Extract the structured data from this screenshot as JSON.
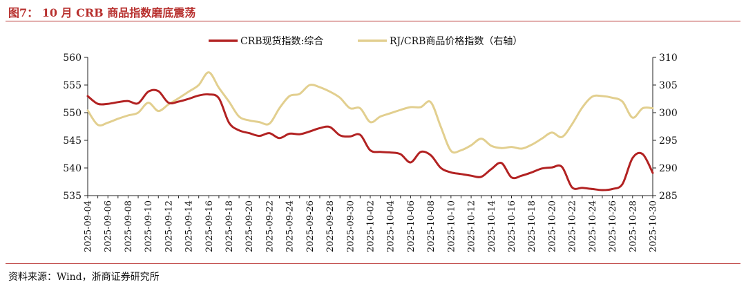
{
  "figure": {
    "title": "图7： 10 月 CRB 商品指数磨底震荡",
    "source": "资料来源：Wind，浙商证券研究所"
  },
  "colors": {
    "accent": "#b8312f",
    "series_crb": "#b22222",
    "series_rj": "#e2cf8f"
  },
  "chart_data": {
    "type": "line",
    "x": [
      "2025-09-04",
      "2025-09-05",
      "2025-09-06",
      "2025-09-07",
      "2025-09-08",
      "2025-09-09",
      "2025-09-10",
      "2025-09-11",
      "2025-09-12",
      "2025-09-13",
      "2025-09-14",
      "2025-09-15",
      "2025-09-16",
      "2025-09-17",
      "2025-09-18",
      "2025-09-19",
      "2025-09-20",
      "2025-09-21",
      "2025-09-22",
      "2025-09-23",
      "2025-09-24",
      "2025-09-25",
      "2025-09-26",
      "2025-09-27",
      "2025-09-28",
      "2025-09-29",
      "2025-09-30",
      "2025-10-01",
      "2025-10-02",
      "2025-10-03",
      "2025-10-04",
      "2025-10-05",
      "2025-10-06",
      "2025-10-07",
      "2025-10-08",
      "2025-10-09",
      "2025-10-10",
      "2025-10-11",
      "2025-10-12",
      "2025-10-13",
      "2025-10-14",
      "2025-10-15",
      "2025-10-16",
      "2025-10-17",
      "2025-10-18",
      "2025-10-19",
      "2025-10-20",
      "2025-10-21",
      "2025-10-22",
      "2025-10-23",
      "2025-10-24",
      "2025-10-25",
      "2025-10-26",
      "2025-10-27",
      "2025-10-28",
      "2025-10-29",
      "2025-10-30"
    ],
    "xticks": [
      "2025-09-04",
      "2025-09-06",
      "2025-09-08",
      "2025-09-10",
      "2025-09-12",
      "2025-09-14",
      "2025-09-16",
      "2025-09-18",
      "2025-09-20",
      "2025-09-22",
      "2025-09-24",
      "2025-09-26",
      "2025-09-28",
      "2025-09-30",
      "2025-10-02",
      "2025-10-04",
      "2025-10-06",
      "2025-10-08",
      "2025-10-10",
      "2025-10-12",
      "2025-10-14",
      "2025-10-16",
      "2025-10-18",
      "2025-10-20",
      "2025-10-22",
      "2025-10-24",
      "2025-10-26",
      "2025-10-28",
      "2025-10-30"
    ],
    "ylim_left": [
      535,
      560
    ],
    "yticks_left": [
      535,
      540,
      545,
      550,
      555,
      560
    ],
    "ylim_right": [
      285,
      310
    ],
    "yticks_right": [
      285,
      290,
      295,
      300,
      305,
      310
    ],
    "legend_position": "top-center",
    "grid": false,
    "series": [
      {
        "name": "CRB现货指数:综合",
        "axis": "left",
        "values": [
          553.0,
          551.6,
          551.6,
          551.9,
          552.1,
          551.7,
          553.8,
          553.9,
          551.8,
          552.0,
          552.5,
          553.1,
          553.3,
          552.6,
          548.2,
          546.8,
          546.3,
          545.8,
          546.3,
          545.4,
          546.2,
          546.1,
          546.6,
          547.2,
          547.4,
          545.9,
          545.7,
          546.0,
          543.2,
          542.9,
          542.8,
          542.5,
          541.0,
          542.9,
          542.3,
          540.0,
          539.2,
          538.9,
          538.6,
          538.4,
          539.8,
          540.9,
          538.3,
          538.6,
          539.2,
          539.9,
          540.1,
          540.2,
          536.5,
          536.4,
          536.2,
          536.0,
          536.2,
          537.1,
          541.8,
          542.5,
          539.1
        ]
      },
      {
        "name": "RJ/CRB商品价格指数（右轴）",
        "axis": "right",
        "values": [
          300.4,
          297.8,
          298.2,
          298.9,
          299.5,
          300.0,
          301.8,
          300.3,
          301.5,
          302.6,
          303.8,
          305.0,
          307.3,
          304.5,
          302.0,
          299.3,
          298.6,
          298.3,
          298.0,
          300.8,
          303.0,
          303.4,
          305.0,
          304.6,
          303.8,
          302.7,
          300.8,
          300.8,
          298.3,
          299.3,
          299.9,
          300.5,
          301.0,
          301.0,
          301.9,
          297.4,
          293.1,
          293.2,
          294.1,
          295.3,
          294.0,
          293.6,
          293.8,
          293.5,
          294.2,
          295.3,
          296.4,
          295.6,
          297.9,
          300.9,
          302.9,
          303.0,
          302.7,
          302.0,
          299.1,
          300.8,
          300.8
        ]
      }
    ]
  }
}
